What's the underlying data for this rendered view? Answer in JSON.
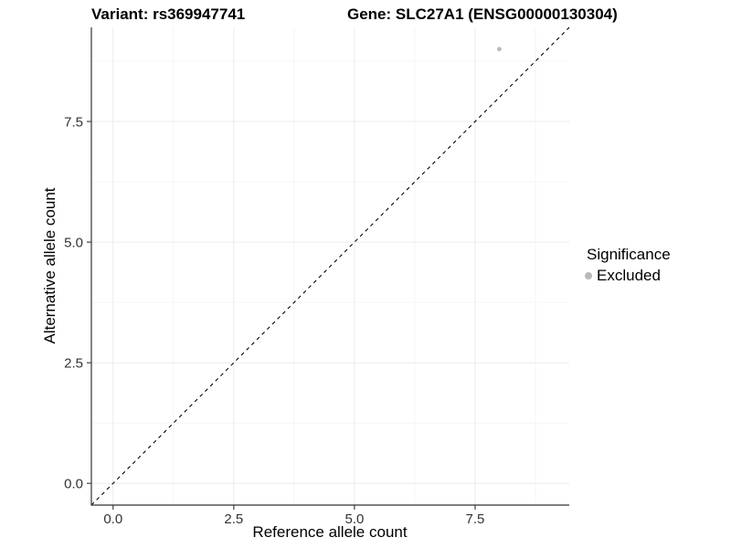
{
  "chart_data": {
    "type": "scatter",
    "title_left": "Variant: rs369947741",
    "title_right": "Gene: SLC27A1 (ENSG00000130304)",
    "xlabel": "Reference allele count",
    "ylabel": "Alternative allele count",
    "xlim": [
      -0.45,
      9.45
    ],
    "ylim": [
      -0.45,
      9.45
    ],
    "x_ticks": {
      "values": [
        0,
        2.5,
        5,
        7.5
      ],
      "labels": [
        "0.0",
        "2.5",
        "5.0",
        "7.5"
      ]
    },
    "y_ticks": {
      "values": [
        0,
        2.5,
        5,
        7.5
      ],
      "labels": [
        "0.0",
        "2.5",
        "5.0",
        "7.5"
      ]
    },
    "minor_ticks": [
      1.25,
      3.75,
      6.25,
      8.75
    ],
    "grid": "major+minor",
    "series": [
      {
        "name": "Excluded",
        "color": "#b9b9b9",
        "points": [
          {
            "x": 8,
            "y": 9
          }
        ]
      }
    ],
    "reference_line": {
      "kind": "identity y=x",
      "from": [
        -0.45,
        -0.45
      ],
      "to": [
        9.45,
        9.45
      ],
      "style": "dashed",
      "color": "#000000"
    },
    "legend": {
      "title": "Significance",
      "position": "right",
      "items": [
        {
          "label": "Excluded",
          "color": "#b9b9b9",
          "shape": "circle"
        }
      ]
    },
    "colors": {
      "background": "#ffffff",
      "grid_major": "#ebebeb",
      "grid_minor": "#f5f5f5",
      "axis_line": "#333333",
      "tick_mark": "#333333",
      "tick_text": "#333333"
    }
  }
}
